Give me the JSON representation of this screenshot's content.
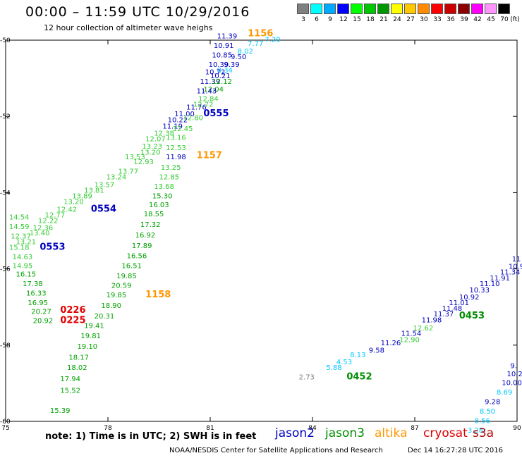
{
  "header": {
    "title": "00:00 – 11:59 UTC 10/29/2016",
    "subtitle": "12 hour collection of altimeter wave heighs"
  },
  "legend": {
    "unit": "(ft)",
    "colors": [
      "#808080",
      "#00ffff",
      "#00aaff",
      "#0000ff",
      "#00ff00",
      "#00c800",
      "#009600",
      "#ffff00",
      "#ffc800",
      "#ff8c00",
      "#ff0000",
      "#c80000",
      "#8c0000",
      "#ff00ff",
      "#ff96ff",
      "#000000"
    ],
    "labels": [
      "3",
      "6",
      "9",
      "12",
      "15",
      "18",
      "21",
      "24",
      "27",
      "30",
      "33",
      "36",
      "39",
      "42",
      "45",
      "70"
    ]
  },
  "map": {
    "lon_ticks": [
      "75",
      "78",
      "81",
      "84",
      "87",
      "90"
    ],
    "lat_ticks": [
      "-50",
      "-52",
      "-54",
      "-56",
      "-58",
      "-60"
    ]
  },
  "satellites": [
    {
      "name": "jason2",
      "color": "#0000c0"
    },
    {
      "name": "jason3",
      "color": "#008c00"
    },
    {
      "name": "altika",
      "color": "#ff9600"
    },
    {
      "name": "cryosat",
      "color": "#e00000"
    },
    {
      "name": "s3a",
      "color": "#b00000"
    }
  ],
  "note": "note:  1) Time is in UTC;  2) SWH is in feet",
  "footer": {
    "credit": "NOAA/NESDIS Center for Satellite Applications and Research",
    "timestamp": "Dec 14 16:27:28 UTC 2016"
  },
  "observations": [
    {
      "t": "11.39",
      "lon": 81.2,
      "lat": -49.95,
      "c": "#0000c0"
    },
    {
      "t": "1156",
      "lon": 82.1,
      "lat": -49.9,
      "c": "#ff9600",
      "pass": true
    },
    {
      "t": "7.20",
      "lon": 82.6,
      "lat": -50.05,
      "c": "#00c8ff"
    },
    {
      "t": "7.77",
      "lon": 82.1,
      "lat": -50.15,
      "c": "#00c8ff"
    },
    {
      "t": "10.91",
      "lon": 81.1,
      "lat": -50.2,
      "c": "#0000c0"
    },
    {
      "t": "8.02",
      "lon": 81.8,
      "lat": -50.35,
      "c": "#00c8ff"
    },
    {
      "t": "10.85",
      "lon": 81.05,
      "lat": -50.45,
      "c": "#0000c0"
    },
    {
      "t": "9.50",
      "lon": 81.6,
      "lat": -50.5,
      "c": "#0000c0"
    },
    {
      "t": "9.39",
      "lon": 81.4,
      "lat": -50.7,
      "c": "#0000c0"
    },
    {
      "t": "10.39",
      "lon": 80.95,
      "lat": -50.7,
      "c": "#0000c0"
    },
    {
      "t": "8.34",
      "lon": 81.2,
      "lat": -50.85,
      "c": "#00c8ff"
    },
    {
      "t": "10.72",
      "lon": 80.85,
      "lat": -50.9,
      "c": "#0000c0"
    },
    {
      "t": "10.21",
      "lon": 81.0,
      "lat": -51.0,
      "c": "#0000c0"
    },
    {
      "t": "11.39",
      "lon": 80.7,
      "lat": -51.15,
      "c": "#0000c0"
    },
    {
      "t": "12.12",
      "lon": 81.05,
      "lat": -51.15,
      "c": "#00a000"
    },
    {
      "t": "12.04",
      "lon": 80.8,
      "lat": -51.35,
      "c": "#00a000"
    },
    {
      "t": "11.43",
      "lon": 80.6,
      "lat": -51.4,
      "c": "#0000c0"
    },
    {
      "t": "12.84",
      "lon": 80.65,
      "lat": -51.6,
      "c": "#33cc33"
    },
    {
      "t": "11.76",
      "lon": 80.3,
      "lat": -51.82,
      "c": "#0000c0"
    },
    {
      "t": "12.72",
      "lon": 80.5,
      "lat": -51.75,
      "c": "#33cc33"
    },
    {
      "t": "11.00",
      "lon": 79.95,
      "lat": -52.0,
      "c": "#0000c0"
    },
    {
      "t": "0555",
      "lon": 80.8,
      "lat": -52.0,
      "c": "#0000c0",
      "pass": true
    },
    {
      "t": "10.22",
      "lon": 79.75,
      "lat": -52.15,
      "c": "#0000c0"
    },
    {
      "t": "12.80",
      "lon": 80.2,
      "lat": -52.1,
      "c": "#33cc33"
    },
    {
      "t": "11.19",
      "lon": 79.6,
      "lat": -52.32,
      "c": "#0000c0"
    },
    {
      "t": "12.45",
      "lon": 79.9,
      "lat": -52.38,
      "c": "#33cc33"
    },
    {
      "t": "12.38",
      "lon": 79.35,
      "lat": -52.5,
      "c": "#33cc33"
    },
    {
      "t": "13.16",
      "lon": 79.7,
      "lat": -52.62,
      "c": "#33cc33"
    },
    {
      "t": "12.07",
      "lon": 79.1,
      "lat": -52.65,
      "c": "#33cc33"
    },
    {
      "t": "12.53",
      "lon": 79.7,
      "lat": -52.88,
      "c": "#33cc33"
    },
    {
      "t": "13.23",
      "lon": 79.0,
      "lat": -52.85,
      "c": "#33cc33"
    },
    {
      "t": "13.20",
      "lon": 78.95,
      "lat": -53.0,
      "c": "#33cc33"
    },
    {
      "t": "11.98",
      "lon": 79.7,
      "lat": -53.12,
      "c": "#0000c0"
    },
    {
      "t": "1157",
      "lon": 80.6,
      "lat": -53.1,
      "c": "#ff9600",
      "pass": true
    },
    {
      "t": "13.53",
      "lon": 78.5,
      "lat": -53.12,
      "c": "#33cc33"
    },
    {
      "t": "12.93",
      "lon": 78.75,
      "lat": -53.25,
      "c": "#33cc33"
    },
    {
      "t": "13.25",
      "lon": 79.55,
      "lat": -53.4,
      "c": "#33cc33"
    },
    {
      "t": "13.77",
      "lon": 78.3,
      "lat": -53.5,
      "c": "#33cc33"
    },
    {
      "t": "13.24",
      "lon": 77.95,
      "lat": -53.65,
      "c": "#33cc33"
    },
    {
      "t": "12.85",
      "lon": 79.5,
      "lat": -53.65,
      "c": "#33cc33"
    },
    {
      "t": "13.57",
      "lon": 77.6,
      "lat": -53.85,
      "c": "#33cc33"
    },
    {
      "t": "13.68",
      "lon": 79.35,
      "lat": -53.9,
      "c": "#33cc33"
    },
    {
      "t": "13.81",
      "lon": 77.3,
      "lat": -54.0,
      "c": "#33cc33"
    },
    {
      "t": "13.89",
      "lon": 76.95,
      "lat": -54.15,
      "c": "#33cc33"
    },
    {
      "t": "15.30",
      "lon": 79.3,
      "lat": -54.15,
      "c": "#00a000"
    },
    {
      "t": "13.20",
      "lon": 76.7,
      "lat": -54.3,
      "c": "#33cc33"
    },
    {
      "t": "16.03",
      "lon": 79.2,
      "lat": -54.38,
      "c": "#00a000"
    },
    {
      "t": "0554",
      "lon": 77.5,
      "lat": -54.5,
      "c": "#0000c0",
      "pass": true
    },
    {
      "t": "12.42",
      "lon": 76.5,
      "lat": -54.5,
      "c": "#33cc33"
    },
    {
      "t": "18.55",
      "lon": 79.05,
      "lat": -54.62,
      "c": "#00a000"
    },
    {
      "t": "14.54",
      "lon": 75.1,
      "lat": -54.7,
      "c": "#33cc33"
    },
    {
      "t": "12.77",
      "lon": 76.15,
      "lat": -54.65,
      "c": "#33cc33"
    },
    {
      "t": "12.22",
      "lon": 75.95,
      "lat": -54.8,
      "c": "#33cc33"
    },
    {
      "t": "17.32",
      "lon": 78.95,
      "lat": -54.9,
      "c": "#00a000"
    },
    {
      "t": "14.59",
      "lon": 75.1,
      "lat": -54.95,
      "c": "#33cc33"
    },
    {
      "t": "12.36",
      "lon": 75.8,
      "lat": -54.98,
      "c": "#33cc33"
    },
    {
      "t": "12.37",
      "lon": 75.15,
      "lat": -55.2,
      "c": "#33cc33"
    },
    {
      "t": "13.40",
      "lon": 75.7,
      "lat": -55.12,
      "c": "#33cc33"
    },
    {
      "t": "16.92",
      "lon": 78.8,
      "lat": -55.18,
      "c": "#00a000"
    },
    {
      "t": "13.21",
      "lon": 75.3,
      "lat": -55.35,
      "c": "#33cc33"
    },
    {
      "t": "17.89",
      "lon": 78.7,
      "lat": -55.45,
      "c": "#00a000"
    },
    {
      "t": "15.18",
      "lon": 75.1,
      "lat": -55.5,
      "c": "#33cc33"
    },
    {
      "t": "0553",
      "lon": 76.0,
      "lat": -55.5,
      "c": "#0000c0",
      "pass": true
    },
    {
      "t": "14.63",
      "lon": 75.2,
      "lat": -55.75,
      "c": "#33cc33"
    },
    {
      "t": "16.56",
      "lon": 78.55,
      "lat": -55.72,
      "c": "#00a000"
    },
    {
      "t": "14.95",
      "lon": 75.2,
      "lat": -55.98,
      "c": "#33cc33"
    },
    {
      "t": "16.51",
      "lon": 78.4,
      "lat": -55.98,
      "c": "#00a000"
    },
    {
      "t": "16.15",
      "lon": 75.3,
      "lat": -56.2,
      "c": "#00a000"
    },
    {
      "t": "19.85",
      "lon": 78.25,
      "lat": -56.25,
      "c": "#00a000"
    },
    {
      "t": "17.38",
      "lon": 75.5,
      "lat": -56.45,
      "c": "#00a000"
    },
    {
      "t": "20.59",
      "lon": 78.1,
      "lat": -56.5,
      "c": "#00a000"
    },
    {
      "t": "16.33",
      "lon": 75.6,
      "lat": -56.7,
      "c": "#00a000"
    },
    {
      "t": "19.85",
      "lon": 77.95,
      "lat": -56.75,
      "c": "#00a000"
    },
    {
      "t": "1158",
      "lon": 79.1,
      "lat": -56.75,
      "c": "#ff9600",
      "pass": true
    },
    {
      "t": "16.95",
      "lon": 75.65,
      "lat": -56.95,
      "c": "#00a000"
    },
    {
      "t": "18.90",
      "lon": 77.8,
      "lat": -57.02,
      "c": "#00a000"
    },
    {
      "t": "20.27",
      "lon": 75.75,
      "lat": -57.18,
      "c": "#00a000"
    },
    {
      "t": "0226",
      "lon": 76.6,
      "lat": -57.15,
      "c": "#e00000",
      "pass": true
    },
    {
      "t": "20.31",
      "lon": 77.6,
      "lat": -57.3,
      "c": "#00a000"
    },
    {
      "t": "20.92",
      "lon": 75.8,
      "lat": -57.42,
      "c": "#00a000"
    },
    {
      "t": "0225",
      "lon": 76.6,
      "lat": -57.42,
      "c": "#e00000",
      "pass": true
    },
    {
      "t": "19.41",
      "lon": 77.3,
      "lat": -57.55,
      "c": "#00a000"
    },
    {
      "t": "19.81",
      "lon": 77.2,
      "lat": -57.82,
      "c": "#00a000"
    },
    {
      "t": "19.10",
      "lon": 77.1,
      "lat": -58.1,
      "c": "#00a000"
    },
    {
      "t": "18.17",
      "lon": 76.85,
      "lat": -58.38,
      "c": "#00a000"
    },
    {
      "t": "18.02",
      "lon": 76.8,
      "lat": -58.65,
      "c": "#00a000"
    },
    {
      "t": "17.94",
      "lon": 76.6,
      "lat": -58.95,
      "c": "#00a000"
    },
    {
      "t": "15.52",
      "lon": 76.6,
      "lat": -59.25,
      "c": "#00a000"
    },
    {
      "t": "15.39",
      "lon": 76.3,
      "lat": -59.78,
      "c": "#00a000"
    },
    {
      "t": "11",
      "lon": 89.85,
      "lat": -55.8,
      "c": "#0000c0"
    },
    {
      "t": "10.98",
      "lon": 89.75,
      "lat": -56.0,
      "c": "#0000c0"
    },
    {
      "t": "11.34",
      "lon": 89.5,
      "lat": -56.15,
      "c": "#0000c0"
    },
    {
      "t": "11.91",
      "lon": 89.2,
      "lat": -56.3,
      "c": "#0000c0"
    },
    {
      "t": "11.10",
      "lon": 88.9,
      "lat": -56.45,
      "c": "#0000c0"
    },
    {
      "t": "10.33",
      "lon": 88.6,
      "lat": -56.62,
      "c": "#0000c0"
    },
    {
      "t": "10.92",
      "lon": 88.3,
      "lat": -56.8,
      "c": "#0000c0"
    },
    {
      "t": "11.01",
      "lon": 88.0,
      "lat": -56.95,
      "c": "#0000c0"
    },
    {
      "t": "11.48",
      "lon": 87.8,
      "lat": -57.1,
      "c": "#0000c0"
    },
    {
      "t": "11.37",
      "lon": 87.55,
      "lat": -57.25,
      "c": "#0000c0"
    },
    {
      "t": "0453",
      "lon": 88.3,
      "lat": -57.3,
      "c": "#008c00",
      "pass": true
    },
    {
      "t": "11.98",
      "lon": 87.2,
      "lat": -57.4,
      "c": "#0000c0"
    },
    {
      "t": "12.62",
      "lon": 86.95,
      "lat": -57.62,
      "c": "#33cc33"
    },
    {
      "t": "11.54",
      "lon": 86.6,
      "lat": -57.75,
      "c": "#0000c0"
    },
    {
      "t": "12.90",
      "lon": 86.55,
      "lat": -57.92,
      "c": "#33cc33"
    },
    {
      "t": "11.26",
      "lon": 86.0,
      "lat": -58.0,
      "c": "#0000c0"
    },
    {
      "t": "9.58",
      "lon": 85.65,
      "lat": -58.2,
      "c": "#0000c0"
    },
    {
      "t": "8.13",
      "lon": 85.1,
      "lat": -58.32,
      "c": "#00c8ff"
    },
    {
      "t": "4.53",
      "lon": 84.7,
      "lat": -58.5,
      "c": "#00c8ff"
    },
    {
      "t": "5.88",
      "lon": 84.4,
      "lat": -58.65,
      "c": "#00c8ff"
    },
    {
      "t": "2.73",
      "lon": 83.6,
      "lat": -58.9,
      "c": "#808080"
    },
    {
      "t": "0452",
      "lon": 85.0,
      "lat": -58.9,
      "c": "#008c00",
      "pass": true
    },
    {
      "t": "9.",
      "lon": 89.8,
      "lat": -58.6,
      "c": "#0000c0"
    },
    {
      "t": "10.2",
      "lon": 89.7,
      "lat": -58.82,
      "c": "#0000c0"
    },
    {
      "t": "10.00",
      "lon": 89.55,
      "lat": -59.05,
      "c": "#0000c0"
    },
    {
      "t": "8.69",
      "lon": 89.4,
      "lat": -59.3,
      "c": "#00c8ff"
    },
    {
      "t": "9.28",
      "lon": 89.05,
      "lat": -59.55,
      "c": "#0000c0"
    },
    {
      "t": "8.50",
      "lon": 88.9,
      "lat": -59.8,
      "c": "#00c8ff"
    },
    {
      "t": "8.56",
      "lon": 88.75,
      "lat": -60.05,
      "c": "#00c8ff"
    },
    {
      "t": "3.28",
      "lon": 88.55,
      "lat": -60.3,
      "c": "#00c8ff"
    }
  ]
}
